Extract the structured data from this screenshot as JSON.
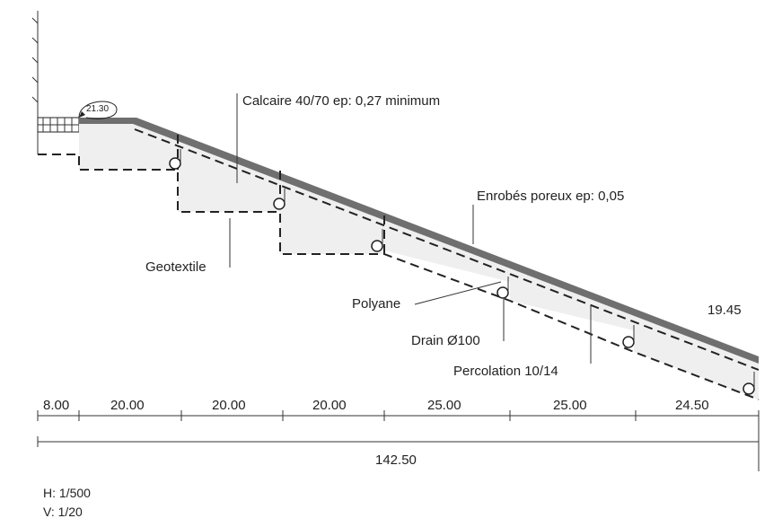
{
  "labels": {
    "calcaire": "Calcaire 40/70 ep: 0,27 minimum",
    "enrobes": "Enrobés poreux ep: 0,05",
    "geotextile": "Geotextile",
    "polyane": "Polyane",
    "drain": "Drain Ø100",
    "percolation": "Percolation 10/14"
  },
  "levels": {
    "top": "21.30",
    "bottom": "19.45"
  },
  "dimensions": {
    "segments": [
      "8.00",
      "20.00",
      "20.00",
      "20.00",
      "25.00",
      "25.00",
      "24.50"
    ],
    "total": "142.50"
  },
  "scale": {
    "horizontal": "H: 1/500",
    "vertical": "V: 1/20"
  },
  "colors": {
    "surface": "#6f6f6f",
    "fill": "#efefef",
    "line": "#222222"
  }
}
